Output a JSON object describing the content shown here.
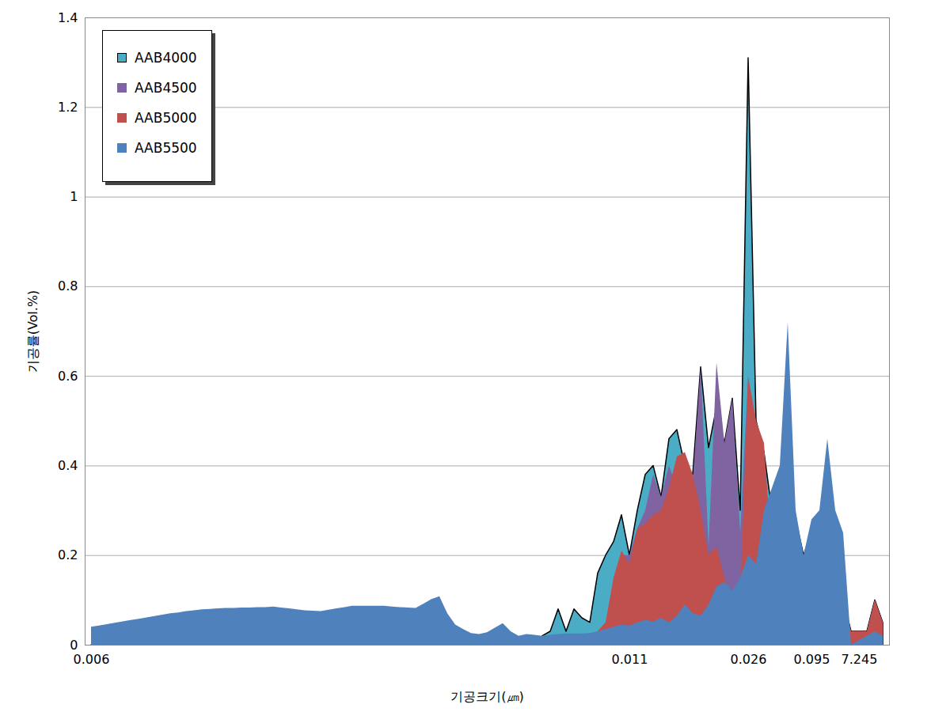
{
  "chart_data": {
    "type": "area",
    "x_label": "기공크기(㎛)",
    "y_label": "기공률(Vol.%)",
    "categories": [
      "0.006",
      null,
      null,
      null,
      null,
      null,
      null,
      null,
      null,
      null,
      null,
      null,
      null,
      null,
      null,
      null,
      null,
      null,
      null,
      null,
      null,
      null,
      null,
      null,
      null,
      null,
      null,
      null,
      null,
      null,
      null,
      null,
      null,
      null,
      null,
      null,
      null,
      null,
      null,
      null,
      null,
      null,
      null,
      null,
      null,
      null,
      null,
      null,
      null,
      null,
      null,
      null,
      null,
      null,
      null,
      null,
      null,
      null,
      null,
      null,
      null,
      null,
      null,
      null,
      null,
      null,
      null,
      null,
      "0.011",
      null,
      null,
      null,
      null,
      null,
      null,
      null,
      null,
      null,
      null,
      null,
      null,
      null,
      null,
      "0.026",
      null,
      null,
      null,
      null,
      null,
      null,
      null,
      "0.095",
      null,
      null,
      null,
      null,
      null,
      "7.245",
      null,
      null,
      null
    ],
    "series": [
      {
        "name": "AAB4000",
        "color": "#4bacc6",
        "values": [
          null,
          null,
          null,
          null,
          null,
          null,
          null,
          null,
          null,
          null,
          null,
          null,
          null,
          null,
          null,
          null,
          null,
          null,
          null,
          null,
          null,
          null,
          null,
          null,
          null,
          null,
          null,
          null,
          null,
          null,
          null,
          null,
          null,
          null,
          null,
          null,
          null,
          null,
          null,
          null,
          null,
          null,
          null,
          null,
          null,
          null,
          null,
          null,
          null,
          null,
          null,
          null,
          null,
          null,
          null,
          null,
          null,
          0.02,
          0.03,
          0.08,
          0.03,
          0.08,
          0.06,
          0.05,
          0.16,
          0.2,
          0.23,
          0.29,
          0.2,
          0.3,
          0.38,
          0.4,
          0.33,
          0.46,
          0.48,
          0.4,
          0.38,
          0.62,
          0.44,
          0.53,
          0.45,
          0.55,
          0.3,
          1.31,
          0.5,
          0.43,
          0.3,
          0.25,
          0.2,
          0.28,
          0.2,
          0.25,
          0.22,
          0.2,
          0.15,
          0.1,
          0.03,
          0.03,
          0.03,
          0.1,
          0.05
        ]
      },
      {
        "name": "AAB4500",
        "color": "#8064a2",
        "values": [
          null,
          null,
          null,
          null,
          null,
          null,
          null,
          null,
          null,
          null,
          null,
          null,
          null,
          null,
          null,
          null,
          null,
          null,
          null,
          null,
          null,
          null,
          null,
          null,
          null,
          null,
          null,
          null,
          null,
          null,
          null,
          null,
          null,
          null,
          null,
          null,
          null,
          null,
          null,
          null,
          null,
          null,
          null,
          null,
          null,
          null,
          null,
          null,
          null,
          null,
          null,
          null,
          null,
          null,
          null,
          null,
          null,
          0.02,
          0.02,
          0.02,
          0.02,
          0.02,
          0.02,
          0.02,
          0.03,
          0.05,
          0.12,
          0.2,
          0.2,
          0.26,
          0.3,
          0.38,
          0.33,
          0.4,
          0.35,
          0.25,
          0.36,
          0.62,
          0.22,
          0.63,
          0.45,
          0.55,
          0.25,
          0.6,
          0.3,
          0.4,
          0.2,
          0.2,
          0.2,
          0.28,
          0.15,
          0.25,
          0.2,
          0.2,
          0.15,
          0.1,
          0.03,
          0.03,
          0.03,
          0.1,
          0.05
        ]
      },
      {
        "name": "AAB5000",
        "color": "#c0504d",
        "values": [
          null,
          null,
          null,
          null,
          null,
          null,
          null,
          null,
          null,
          null,
          null,
          null,
          null,
          null,
          null,
          null,
          null,
          null,
          null,
          null,
          null,
          null,
          null,
          null,
          null,
          null,
          null,
          null,
          null,
          null,
          null,
          null,
          null,
          null,
          null,
          null,
          null,
          null,
          null,
          null,
          null,
          null,
          null,
          null,
          null,
          null,
          null,
          null,
          null,
          null,
          null,
          null,
          null,
          null,
          null,
          null,
          null,
          0.02,
          0.02,
          0.02,
          0.02,
          0.02,
          0.02,
          0.02,
          0.03,
          0.05,
          0.15,
          0.21,
          0.18,
          0.26,
          0.27,
          0.29,
          0.3,
          0.35,
          0.42,
          0.43,
          0.38,
          0.3,
          0.2,
          0.22,
          0.15,
          0.1,
          0.1,
          0.6,
          0.5,
          0.45,
          0.2,
          0.2,
          0.2,
          0.28,
          0.15,
          0.25,
          0.2,
          0.2,
          0.15,
          0.1,
          0.03,
          0.03,
          0.03,
          0.1,
          0.05
        ]
      },
      {
        "name": "AAB5500",
        "color": "#4f81bd",
        "values": [
          0.04,
          0.043,
          0.046,
          0.049,
          0.052,
          0.055,
          0.058,
          0.061,
          0.064,
          0.067,
          0.07,
          0.072,
          0.075,
          0.077,
          0.079,
          0.08,
          0.081,
          0.082,
          0.082,
          0.083,
          0.083,
          0.084,
          0.084,
          0.085,
          0.083,
          0.081,
          0.079,
          0.077,
          0.076,
          0.075,
          0.078,
          0.081,
          0.084,
          0.087,
          0.087,
          0.087,
          0.087,
          0.087,
          0.085,
          0.084,
          0.083,
          0.082,
          0.092,
          0.102,
          0.108,
          0.07,
          0.045,
          0.035,
          0.026,
          0.024,
          0.028,
          0.038,
          0.048,
          0.03,
          0.02,
          0.024,
          0.022,
          0.02,
          0.022,
          0.024,
          0.025,
          0.025,
          0.025,
          0.026,
          0.03,
          0.035,
          0.04,
          0.045,
          0.043,
          0.05,
          0.055,
          0.052,
          0.06,
          0.05,
          0.065,
          0.09,
          0.07,
          0.065,
          0.09,
          0.13,
          0.14,
          0.12,
          0.15,
          0.2,
          0.18,
          0.3,
          0.35,
          0.4,
          0.72,
          0.3,
          0.2,
          0.28,
          0.3,
          0.46,
          0.3,
          0.25,
          0,
          0.01,
          0.02,
          0.03,
          0.02
        ]
      }
    ],
    "ylim": [
      0,
      1.4
    ],
    "yticks": [
      0,
      0.2,
      0.4,
      0.6,
      0.8,
      1,
      1.2,
      1.4
    ],
    "grid": true,
    "legend": "top-left"
  }
}
